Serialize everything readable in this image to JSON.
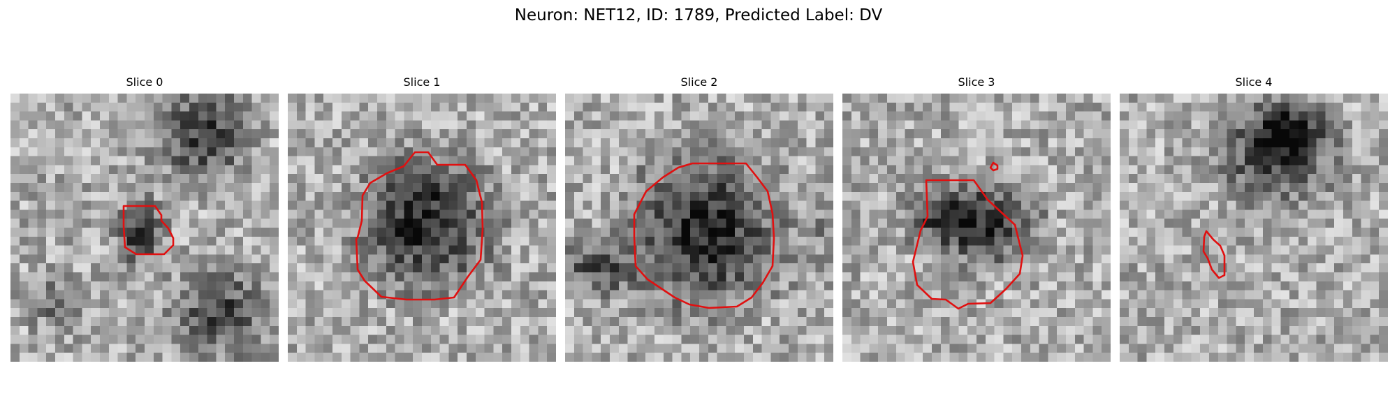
{
  "figure": {
    "title": "Neuron: NET12, ID: 1789, Predicted Label: DV"
  },
  "outline_color": "#e01010",
  "panels": [
    {
      "title": "Slice 0",
      "image": "noisy-grayscale-microscopy-slice",
      "outline": "small-irregular-contour"
    },
    {
      "title": "Slice 1",
      "image": "noisy-grayscale-microscopy-slice",
      "outline": "large-round-contour"
    },
    {
      "title": "Slice 2",
      "image": "noisy-grayscale-microscopy-slice",
      "outline": "large-round-contour"
    },
    {
      "title": "Slice 3",
      "image": "noisy-grayscale-microscopy-slice",
      "outline": "medium-octagonal-contour"
    },
    {
      "title": "Slice 4",
      "image": "noisy-grayscale-microscopy-slice",
      "outline": "small-elongated-contour"
    }
  ]
}
